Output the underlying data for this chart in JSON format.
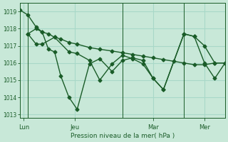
{
  "background_color": "#c8e8d8",
  "grid_color": "#a8d8c8",
  "line_color": "#1a5c28",
  "marker": "D",
  "markersize": 2.5,
  "linewidth": 1.0,
  "xlabel": "Pression niveau de la mer( hPa )",
  "ylim": [
    1012.8,
    1019.5
  ],
  "yticks": [
    1013,
    1014,
    1015,
    1016,
    1017,
    1018,
    1019
  ],
  "xlim": [
    0,
    1.0
  ],
  "series1_x": [
    0.0,
    0.04,
    0.08,
    0.11,
    0.14,
    0.17,
    0.2,
    0.24,
    0.28,
    0.34,
    0.39,
    0.45,
    0.5,
    0.55,
    0.6,
    0.65,
    0.7,
    0.75,
    0.8,
    0.85,
    0.9,
    0.95,
    1.0
  ],
  "series1_y": [
    1019.1,
    1018.8,
    1018.1,
    1017.8,
    1017.7,
    1017.5,
    1017.4,
    1017.2,
    1017.1,
    1016.9,
    1016.8,
    1016.7,
    1016.6,
    1016.5,
    1016.4,
    1016.3,
    1016.2,
    1016.1,
    1016.0,
    1015.9,
    1015.9,
    1016.0,
    1016.0
  ],
  "series2_x": [
    0.04,
    0.08,
    0.11,
    0.14,
    0.17,
    0.2,
    0.24,
    0.28,
    0.34,
    0.39,
    0.45,
    0.5,
    0.55,
    0.6,
    0.65,
    0.7,
    0.8,
    0.85,
    0.9,
    0.95,
    1.0
  ],
  "series2_y": [
    1017.7,
    1018.0,
    1017.8,
    1016.8,
    1016.65,
    1015.25,
    1014.0,
    1013.3,
    1015.95,
    1016.25,
    1015.5,
    1016.15,
    1016.3,
    1016.15,
    1015.1,
    1014.45,
    1017.7,
    1017.55,
    1017.0,
    1016.0,
    1016.0
  ],
  "series3_x": [
    0.04,
    0.08,
    0.11,
    0.17,
    0.24,
    0.28,
    0.34,
    0.39,
    0.45,
    0.5,
    0.55,
    0.6,
    0.65,
    0.7,
    0.8,
    0.85,
    0.9,
    0.95,
    1.0
  ],
  "series3_y": [
    1017.7,
    1017.1,
    1017.1,
    1017.5,
    1016.65,
    1016.55,
    1016.15,
    1015.0,
    1015.95,
    1016.45,
    1016.25,
    1015.95,
    1015.1,
    1014.45,
    1017.7,
    1017.55,
    1016.0,
    1015.1,
    1016.0
  ],
  "vline_x": [
    0.04,
    0.5,
    0.8
  ],
  "xtick_x": [
    0.02,
    0.27,
    0.65,
    0.9
  ],
  "xtick_labels": [
    "Lun",
    "Jeu",
    "Mar",
    "Mer"
  ]
}
